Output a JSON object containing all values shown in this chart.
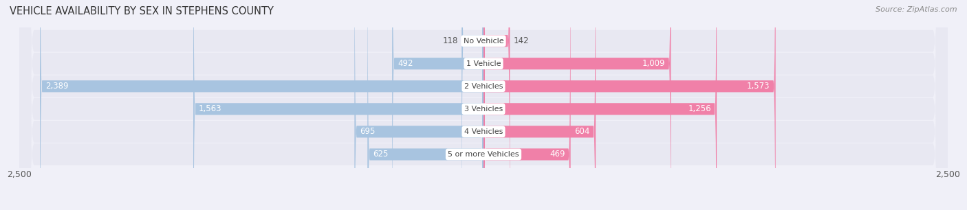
{
  "title": "VEHICLE AVAILABILITY BY SEX IN STEPHENS COUNTY",
  "source": "Source: ZipAtlas.com",
  "categories": [
    "No Vehicle",
    "1 Vehicle",
    "2 Vehicles",
    "3 Vehicles",
    "4 Vehicles",
    "5 or more Vehicles"
  ],
  "male_values": [
    118,
    492,
    2389,
    1563,
    695,
    625
  ],
  "female_values": [
    142,
    1009,
    1573,
    1256,
    604,
    469
  ],
  "male_color": "#a8c4e0",
  "female_color": "#f080a8",
  "row_bg_color": "#e8e8f0",
  "axis_limit": 2500,
  "title_fontsize": 10.5,
  "source_fontsize": 8,
  "legend_fontsize": 9,
  "tick_fontsize": 9,
  "bar_label_fontsize": 8.5,
  "category_fontsize": 8,
  "bar_height": 0.52,
  "inside_threshold": 300
}
